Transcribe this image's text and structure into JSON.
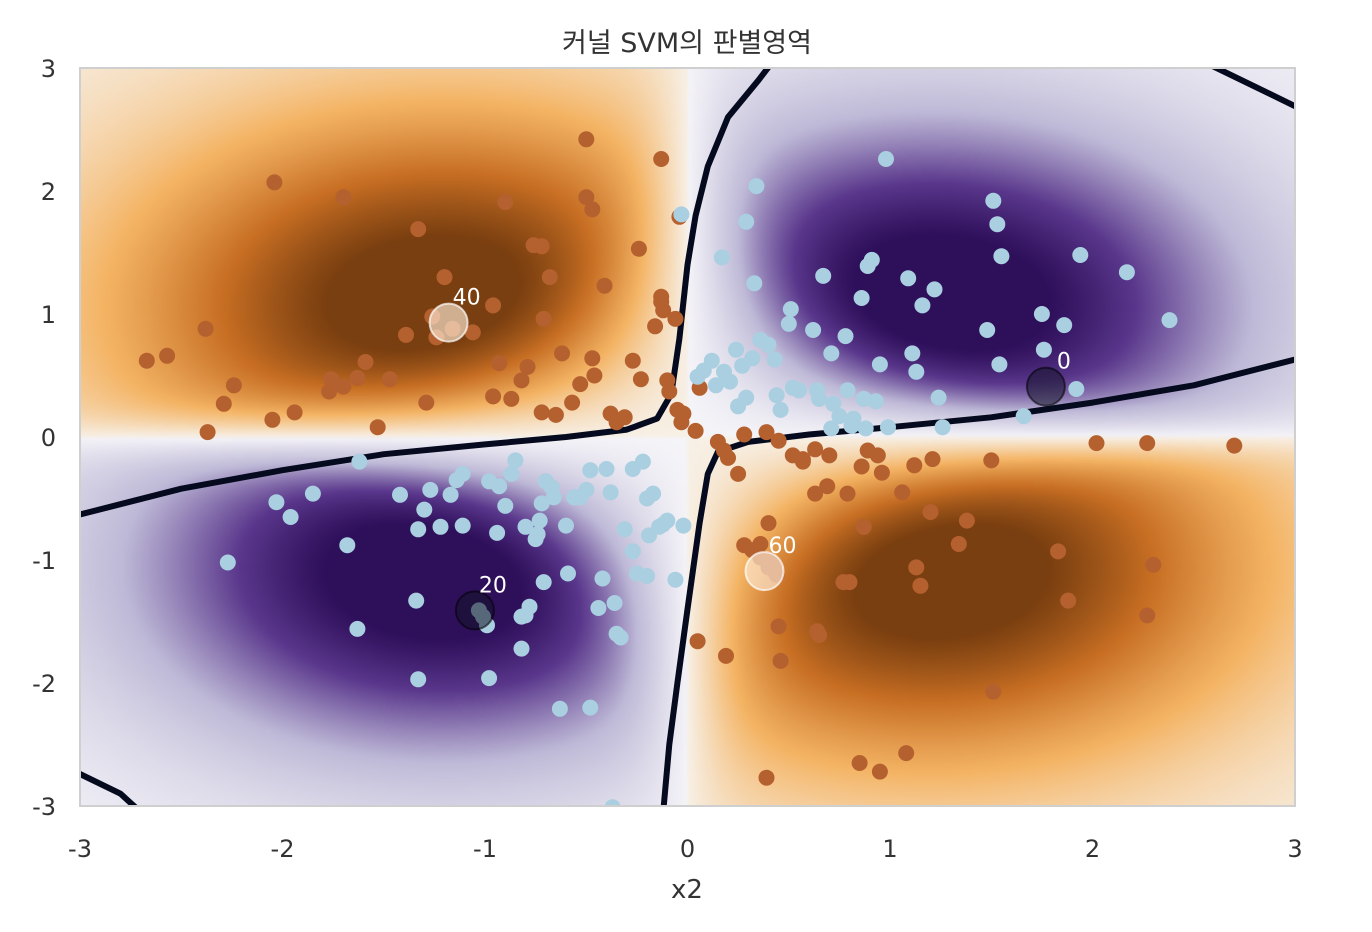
{
  "chart_data": {
    "type": "scatter",
    "title": "커널 SVM의 판별영역",
    "xlabel": "x2",
    "ylabel": "",
    "xlim": [
      -3,
      3
    ],
    "ylim": [
      -3,
      3
    ],
    "x_ticks": [
      "-3",
      "-2",
      "-1",
      "0",
      "1",
      "2",
      "3"
    ],
    "y_ticks": [
      "3",
      "2",
      "1",
      "0",
      "-1",
      "-2",
      "-3"
    ],
    "grid": false,
    "legend": "none",
    "background": "decision-function heatmap, colormap PuOr (orange = class A, purple = class B)",
    "decision_boundary_color": "#050a1e",
    "colors": {
      "class_a": "#b5612f",
      "class_b": "#a9cfe0",
      "orange_peak": "#7a3f10",
      "purple_peak": "#2e0f5a"
    },
    "series": [
      {
        "class": "A",
        "points": [
          [
            -2.67,
            0.62
          ],
          [
            -2.57,
            0.66
          ],
          [
            -2.38,
            0.88
          ],
          [
            -2.24,
            0.42
          ],
          [
            -2.29,
            0.27
          ],
          [
            -2.37,
            0.04
          ],
          [
            -2.04,
            2.07
          ],
          [
            -2.05,
            0.14
          ],
          [
            -1.94,
            0.2
          ],
          [
            -1.77,
            0.37
          ],
          [
            -1.76,
            0.47
          ],
          [
            -1.7,
            1.95
          ],
          [
            -1.7,
            0.41
          ],
          [
            -1.63,
            0.48
          ],
          [
            -1.59,
            0.61
          ],
          [
            -1.53,
            0.08
          ],
          [
            -1.47,
            0.47
          ],
          [
            -1.39,
            0.83
          ],
          [
            -1.33,
            1.69
          ],
          [
            -1.29,
            0.28
          ],
          [
            -1.26,
            0.98
          ],
          [
            -1.24,
            0.81
          ],
          [
            -1.2,
            1.3
          ],
          [
            -1.16,
            0.88
          ],
          [
            -1.06,
            0.85
          ],
          [
            -0.96,
            1.07
          ],
          [
            -0.96,
            0.33
          ],
          [
            -0.93,
            0.6
          ],
          [
            -0.9,
            1.91
          ],
          [
            -0.87,
            0.31
          ],
          [
            -0.82,
            0.46
          ],
          [
            -0.79,
            0.57
          ],
          [
            -0.76,
            1.56
          ],
          [
            -0.72,
            1.55
          ],
          [
            -0.71,
            0.96
          ],
          [
            -0.72,
            0.2
          ],
          [
            -0.68,
            1.3
          ],
          [
            -0.65,
            0.18
          ],
          [
            -0.62,
            0.68
          ],
          [
            -0.57,
            0.28
          ],
          [
            -0.53,
            0.43
          ],
          [
            -0.5,
            1.95
          ],
          [
            -0.47,
            1.85
          ],
          [
            -0.5,
            2.42
          ],
          [
            -0.47,
            0.64
          ],
          [
            -0.46,
            0.5
          ],
          [
            -0.41,
            1.23
          ],
          [
            -0.38,
            0.19
          ],
          [
            -0.35,
            0.12
          ],
          [
            -0.31,
            0.16
          ],
          [
            -0.27,
            0.62
          ],
          [
            -0.24,
            1.53
          ],
          [
            -0.23,
            0.47
          ],
          [
            -0.16,
            0.9
          ],
          [
            -0.13,
            2.26
          ],
          [
            -0.13,
            1.14
          ],
          [
            -0.13,
            1.1
          ],
          [
            -0.12,
            1.03
          ],
          [
            -0.1,
            0.46
          ],
          [
            -0.09,
            0.37
          ],
          [
            -0.05,
            0.22
          ],
          [
            -0.03,
            0.12
          ],
          [
            -0.04,
            1.79
          ],
          [
            -0.06,
            0.96
          ],
          [
            -0.02,
            0.19
          ],
          [
            0.06,
            0.4
          ],
          [
            0.04,
            0.05
          ],
          [
            0.15,
            -0.04
          ],
          [
            0.18,
            -0.11
          ],
          [
            0.2,
            -0.17
          ],
          [
            0.25,
            -0.3
          ],
          [
            0.28,
            0.02
          ],
          [
            0.28,
            -0.88
          ],
          [
            0.32,
            -0.92
          ],
          [
            0.36,
            -0.87
          ],
          [
            0.4,
            -0.7
          ],
          [
            0.36,
            -0.98
          ],
          [
            0.4,
            -1.0
          ],
          [
            0.4,
            -1.06
          ],
          [
            0.43,
            -1.04
          ],
          [
            0.44,
            -1.12
          ],
          [
            0.45,
            -1.54
          ],
          [
            0.46,
            -1.82
          ],
          [
            0.39,
            0.04
          ],
          [
            0.45,
            -0.03
          ],
          [
            0.52,
            -0.15
          ],
          [
            0.57,
            -0.18
          ],
          [
            0.57,
            -0.2
          ],
          [
            0.63,
            -0.1
          ],
          [
            0.63,
            -0.46
          ],
          [
            0.64,
            -1.58
          ],
          [
            0.65,
            -1.61
          ],
          [
            0.69,
            -0.4
          ],
          [
            0.7,
            -0.15
          ],
          [
            0.77,
            -1.18
          ],
          [
            0.79,
            -0.46
          ],
          [
            0.8,
            -1.18
          ],
          [
            0.85,
            -2.65
          ],
          [
            0.86,
            -0.24
          ],
          [
            0.87,
            -0.73
          ],
          [
            0.89,
            -0.11
          ],
          [
            0.94,
            -0.15
          ],
          [
            0.95,
            -2.72
          ],
          [
            0.96,
            -0.29
          ],
          [
            0.05,
            -1.66
          ],
          [
            0.19,
            -1.78
          ],
          [
            0.39,
            -2.77
          ],
          [
            1.06,
            -0.45
          ],
          [
            1.08,
            -2.57
          ],
          [
            1.12,
            -0.23
          ],
          [
            1.13,
            -1.06
          ],
          [
            1.15,
            -1.21
          ],
          [
            1.2,
            -0.61
          ],
          [
            1.21,
            -0.18
          ],
          [
            1.34,
            -0.87
          ],
          [
            1.38,
            -0.68
          ],
          [
            1.5,
            -0.19
          ],
          [
            1.51,
            -2.07
          ],
          [
            1.83,
            -0.93
          ],
          [
            1.88,
            -1.33
          ],
          [
            2.02,
            -0.05
          ],
          [
            2.27,
            -0.05
          ],
          [
            2.3,
            -1.04
          ],
          [
            2.27,
            -1.45
          ],
          [
            2.7,
            -0.07
          ]
        ]
      },
      {
        "class": "B",
        "points": [
          [
            -2.27,
            -1.02
          ],
          [
            -2.03,
            -0.53
          ],
          [
            -1.96,
            -0.65
          ],
          [
            -1.85,
            -0.46
          ],
          [
            -1.68,
            -0.88
          ],
          [
            -1.62,
            -0.2
          ],
          [
            -1.63,
            -1.56
          ],
          [
            -1.42,
            -0.47
          ],
          [
            -1.33,
            -0.75
          ],
          [
            -1.34,
            -1.33
          ],
          [
            -1.33,
            -1.97
          ],
          [
            -1.3,
            -0.59
          ],
          [
            -1.27,
            -0.43
          ],
          [
            -1.22,
            -0.73
          ],
          [
            -1.17,
            -0.47
          ],
          [
            -1.14,
            -0.35
          ],
          [
            -1.11,
            -0.3
          ],
          [
            -1.11,
            -0.72
          ],
          [
            -1.03,
            -1.41
          ],
          [
            -1.01,
            -1.46
          ],
          [
            -0.99,
            -1.53
          ],
          [
            -0.98,
            -0.36
          ],
          [
            -0.94,
            -0.78
          ],
          [
            -0.93,
            -0.4
          ],
          [
            -0.9,
            -0.56
          ],
          [
            -0.87,
            -0.3
          ],
          [
            -0.85,
            -0.19
          ],
          [
            -0.82,
            -1.46
          ],
          [
            -0.82,
            -1.72
          ],
          [
            -0.8,
            -0.73
          ],
          [
            -0.8,
            -1.45
          ],
          [
            -0.78,
            -1.38
          ],
          [
            -0.75,
            -0.83
          ],
          [
            -0.74,
            -0.79
          ],
          [
            -0.73,
            -0.68
          ],
          [
            -0.72,
            -0.54
          ],
          [
            -0.71,
            -1.18
          ],
          [
            -0.7,
            -0.36
          ],
          [
            -0.67,
            -0.41
          ],
          [
            -0.66,
            -0.49
          ],
          [
            -0.63,
            -2.21
          ],
          [
            -0.6,
            -0.72
          ],
          [
            -0.59,
            -1.11
          ],
          [
            -0.56,
            -0.49
          ],
          [
            -0.53,
            -0.49
          ],
          [
            -0.5,
            -0.43
          ],
          [
            -0.48,
            -0.27
          ],
          [
            -0.44,
            -1.39
          ],
          [
            -0.42,
            -1.15
          ],
          [
            -0.4,
            -0.26
          ],
          [
            -0.38,
            -0.45
          ],
          [
            -0.36,
            -1.35
          ],
          [
            -0.35,
            -1.6
          ],
          [
            -0.33,
            -1.63
          ],
          [
            -0.31,
            -0.75
          ],
          [
            -0.27,
            -0.93
          ],
          [
            -0.27,
            -0.26
          ],
          [
            -0.25,
            -1.11
          ],
          [
            -0.22,
            -0.2
          ],
          [
            -0.2,
            -1.13
          ],
          [
            -0.2,
            -0.5
          ],
          [
            -0.19,
            -0.8
          ],
          [
            -0.17,
            -0.46
          ],
          [
            -0.14,
            -0.73
          ],
          [
            -0.12,
            -0.71
          ],
          [
            -0.1,
            -0.68
          ],
          [
            -0.06,
            -1.16
          ],
          [
            -0.02,
            -0.72
          ],
          [
            -0.03,
            1.81
          ],
          [
            -0.48,
            -2.2
          ],
          [
            -0.98,
            -1.96
          ],
          [
            -0.37,
            -3.01
          ],
          [
            0.05,
            0.49
          ],
          [
            0.08,
            0.54
          ],
          [
            0.12,
            0.62
          ],
          [
            0.14,
            0.42
          ],
          [
            0.17,
            1.46
          ],
          [
            0.18,
            0.53
          ],
          [
            0.21,
            0.45
          ],
          [
            0.24,
            0.71
          ],
          [
            0.25,
            0.25
          ],
          [
            0.27,
            0.58
          ],
          [
            0.29,
            0.32
          ],
          [
            0.32,
            0.64
          ],
          [
            0.34,
            2.04
          ],
          [
            0.33,
            1.25
          ],
          [
            0.29,
            1.75
          ],
          [
            0.36,
            0.79
          ],
          [
            0.4,
            0.75
          ],
          [
            0.43,
            0.63
          ],
          [
            0.44,
            0.34
          ],
          [
            0.46,
            0.22
          ],
          [
            0.5,
            0.92
          ],
          [
            0.51,
            1.04
          ],
          [
            0.52,
            0.4
          ],
          [
            0.55,
            0.38
          ],
          [
            0.62,
            0.87
          ],
          [
            0.64,
            0.38
          ],
          [
            0.65,
            0.31
          ],
          [
            0.67,
            1.31
          ],
          [
            0.71,
            0.68
          ],
          [
            0.71,
            0.07
          ],
          [
            0.72,
            0.27
          ],
          [
            0.75,
            0.17
          ],
          [
            0.78,
            0.82
          ],
          [
            0.79,
            0.38
          ],
          [
            0.81,
            0.09
          ],
          [
            0.82,
            0.15
          ],
          [
            0.86,
            1.13
          ],
          [
            0.87,
            0.31
          ],
          [
            0.88,
            0.07
          ],
          [
            0.89,
            1.39
          ],
          [
            0.91,
            1.44
          ],
          [
            0.93,
            0.29
          ],
          [
            0.95,
            0.59
          ],
          [
            0.98,
            2.26
          ],
          [
            0.99,
            0.08
          ],
          [
            1.09,
            1.29
          ],
          [
            1.11,
            0.68
          ],
          [
            1.13,
            0.53
          ],
          [
            1.16,
            1.07
          ],
          [
            1.22,
            1.2
          ],
          [
            1.24,
            0.32
          ],
          [
            1.26,
            0.08
          ],
          [
            1.48,
            0.87
          ],
          [
            1.51,
            1.92
          ],
          [
            1.53,
            1.73
          ],
          [
            1.54,
            0.59
          ],
          [
            1.55,
            1.47
          ],
          [
            1.66,
            0.17
          ],
          [
            1.75,
            1.0
          ],
          [
            1.76,
            0.71
          ],
          [
            1.86,
            0.91
          ],
          [
            1.92,
            0.39
          ],
          [
            1.94,
            1.48
          ],
          [
            2.17,
            1.34
          ],
          [
            2.38,
            0.95
          ]
        ]
      }
    ],
    "highlighted_samples": [
      {
        "label": "0",
        "x": 1.77,
        "y": 0.41,
        "class": "B"
      },
      {
        "label": "20",
        "x": -1.05,
        "y": -1.41,
        "class": "B"
      },
      {
        "label": "40",
        "x": -1.18,
        "y": 0.93,
        "class": "A"
      },
      {
        "label": "60",
        "x": 0.38,
        "y": -1.09,
        "class": "A"
      }
    ]
  }
}
